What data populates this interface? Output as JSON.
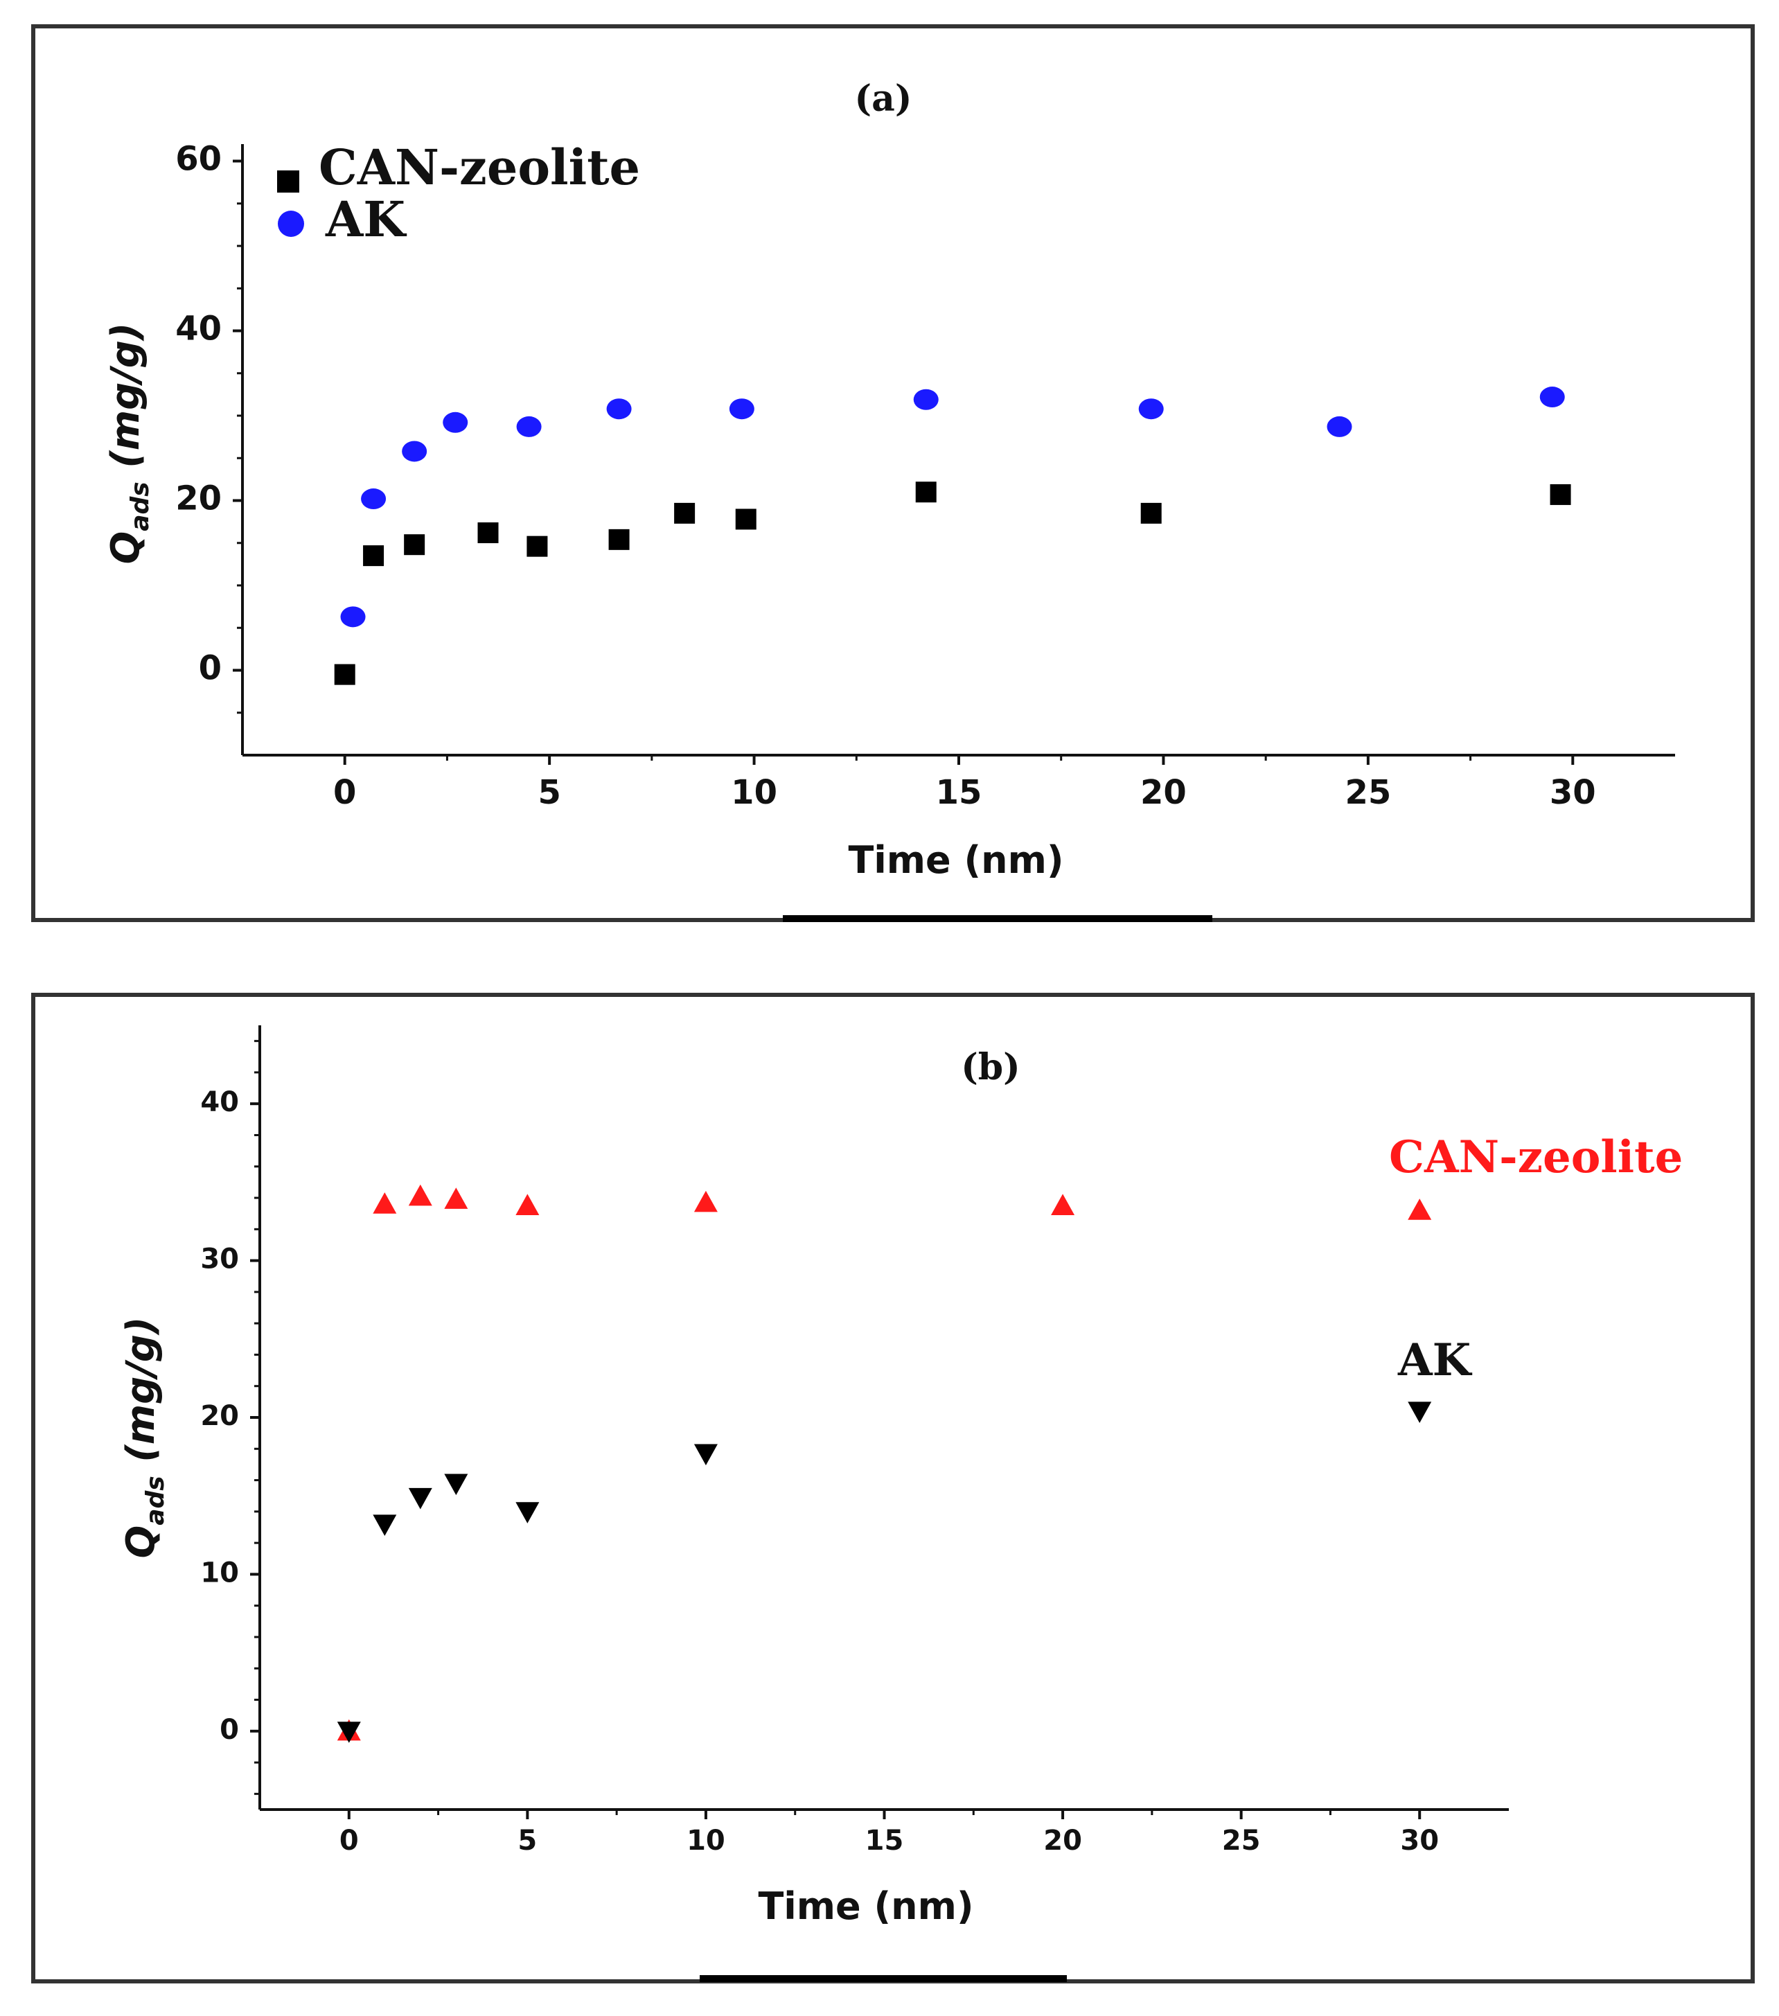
{
  "chart_data": [
    {
      "type": "scatter",
      "title": "(a)",
      "xlabel": "Time (nm)",
      "ylabel": "Q",
      "ylabel_sub": "ads",
      "ylabel_units": " (mg/g)",
      "xlim": [
        -2.5,
        32.5
      ],
      "ylim": [
        -10,
        62
      ],
      "xticks": [
        "0",
        "5",
        "10",
        "15",
        "20",
        "25",
        "30"
      ],
      "yticks": [
        "0",
        "20",
        "40",
        "60"
      ],
      "series": [
        {
          "name": "CAN-zeolite",
          "marker": "square",
          "color": "#000000",
          "x": [
            0,
            0.7,
            1.7,
            3.5,
            4.7,
            6.7,
            8.3,
            9.8,
            14.2,
            19.7,
            29.7
          ],
          "y": [
            -0.5,
            13.5,
            14.8,
            16.2,
            14.6,
            15.4,
            18.5,
            17.8,
            21.0,
            18.5,
            20.7
          ]
        },
        {
          "name": "AK",
          "marker": "circle",
          "color": "#1a1aff",
          "x": [
            0.2,
            0.7,
            1.7,
            2.7,
            4.5,
            6.7,
            9.7,
            14.2,
            19.7,
            24.3,
            29.5
          ],
          "y": [
            6.3,
            20.2,
            25.8,
            29.2,
            28.7,
            30.8,
            30.8,
            31.9,
            30.8,
            28.7,
            32.2
          ]
        }
      ]
    },
    {
      "type": "scatter",
      "title": "(b)",
      "xlabel": "Time (nm)",
      "ylabel": "Q",
      "ylabel_sub": "ads",
      "ylabel_units": " (mg/g)",
      "xlim": [
        -2.5,
        32.5
      ],
      "ylim": [
        -5,
        45
      ],
      "xticks": [
        "0",
        "5",
        "10",
        "15",
        "20",
        "25",
        "30"
      ],
      "yticks": [
        "0",
        "10",
        "20",
        "30",
        "40"
      ],
      "series": [
        {
          "name": "CAN-zeolite",
          "marker": "triangle-up",
          "color": "#ff1a1a",
          "x": [
            0,
            1,
            2,
            3,
            5,
            10,
            20,
            30
          ],
          "y": [
            0,
            33.6,
            34.1,
            33.9,
            33.5,
            33.7,
            33.5,
            33.2
          ]
        },
        {
          "name": "AK",
          "marker": "triangle-down",
          "color": "#000000",
          "x": [
            0,
            1,
            2,
            3,
            5,
            10,
            30
          ],
          "y": [
            0,
            13.2,
            14.9,
            15.8,
            14.0,
            17.7,
            20.4
          ]
        }
      ]
    }
  ]
}
